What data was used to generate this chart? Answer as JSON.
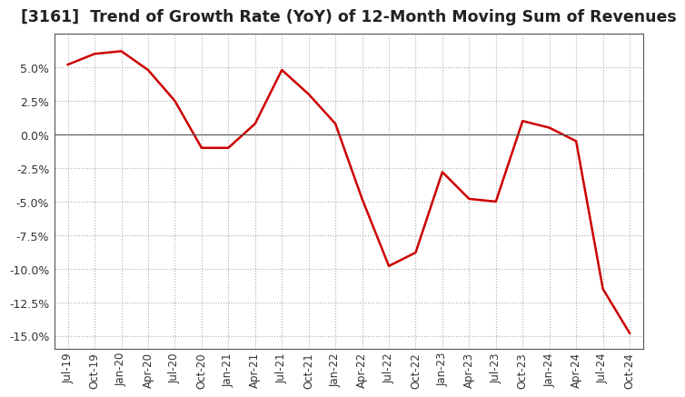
{
  "title": "[3161]  Trend of Growth Rate (YoY) of 12-Month Moving Sum of Revenues",
  "title_fontsize": 12.5,
  "line_color": "#cc0000",
  "background_color": "#ffffff",
  "plot_bg_color": "#ffffff",
  "grid_color": "#aaaaaa",
  "ylim": [
    -0.16,
    0.075
  ],
  "yticks": [
    0.05,
    0.025,
    0.0,
    -0.025,
    -0.05,
    -0.075,
    -0.1,
    -0.125,
    -0.15
  ],
  "x_labels": [
    "Jul-19",
    "Oct-19",
    "Jan-20",
    "Apr-20",
    "Jul-20",
    "Oct-20",
    "Jan-21",
    "Apr-21",
    "Jul-21",
    "Oct-21",
    "Jan-22",
    "Apr-22",
    "Jul-22",
    "Oct-22",
    "Jan-23",
    "Apr-23",
    "Jul-23",
    "Oct-23",
    "Jan-24",
    "Apr-24",
    "Jul-24",
    "Oct-24"
  ],
  "values": [
    0.052,
    0.06,
    0.062,
    0.048,
    0.025,
    -0.01,
    -0.01,
    0.008,
    0.048,
    0.03,
    0.008,
    -0.048,
    -0.098,
    -0.088,
    -0.028,
    -0.048,
    -0.05,
    0.01,
    0.005,
    -0.005,
    -0.115,
    -0.148
  ]
}
